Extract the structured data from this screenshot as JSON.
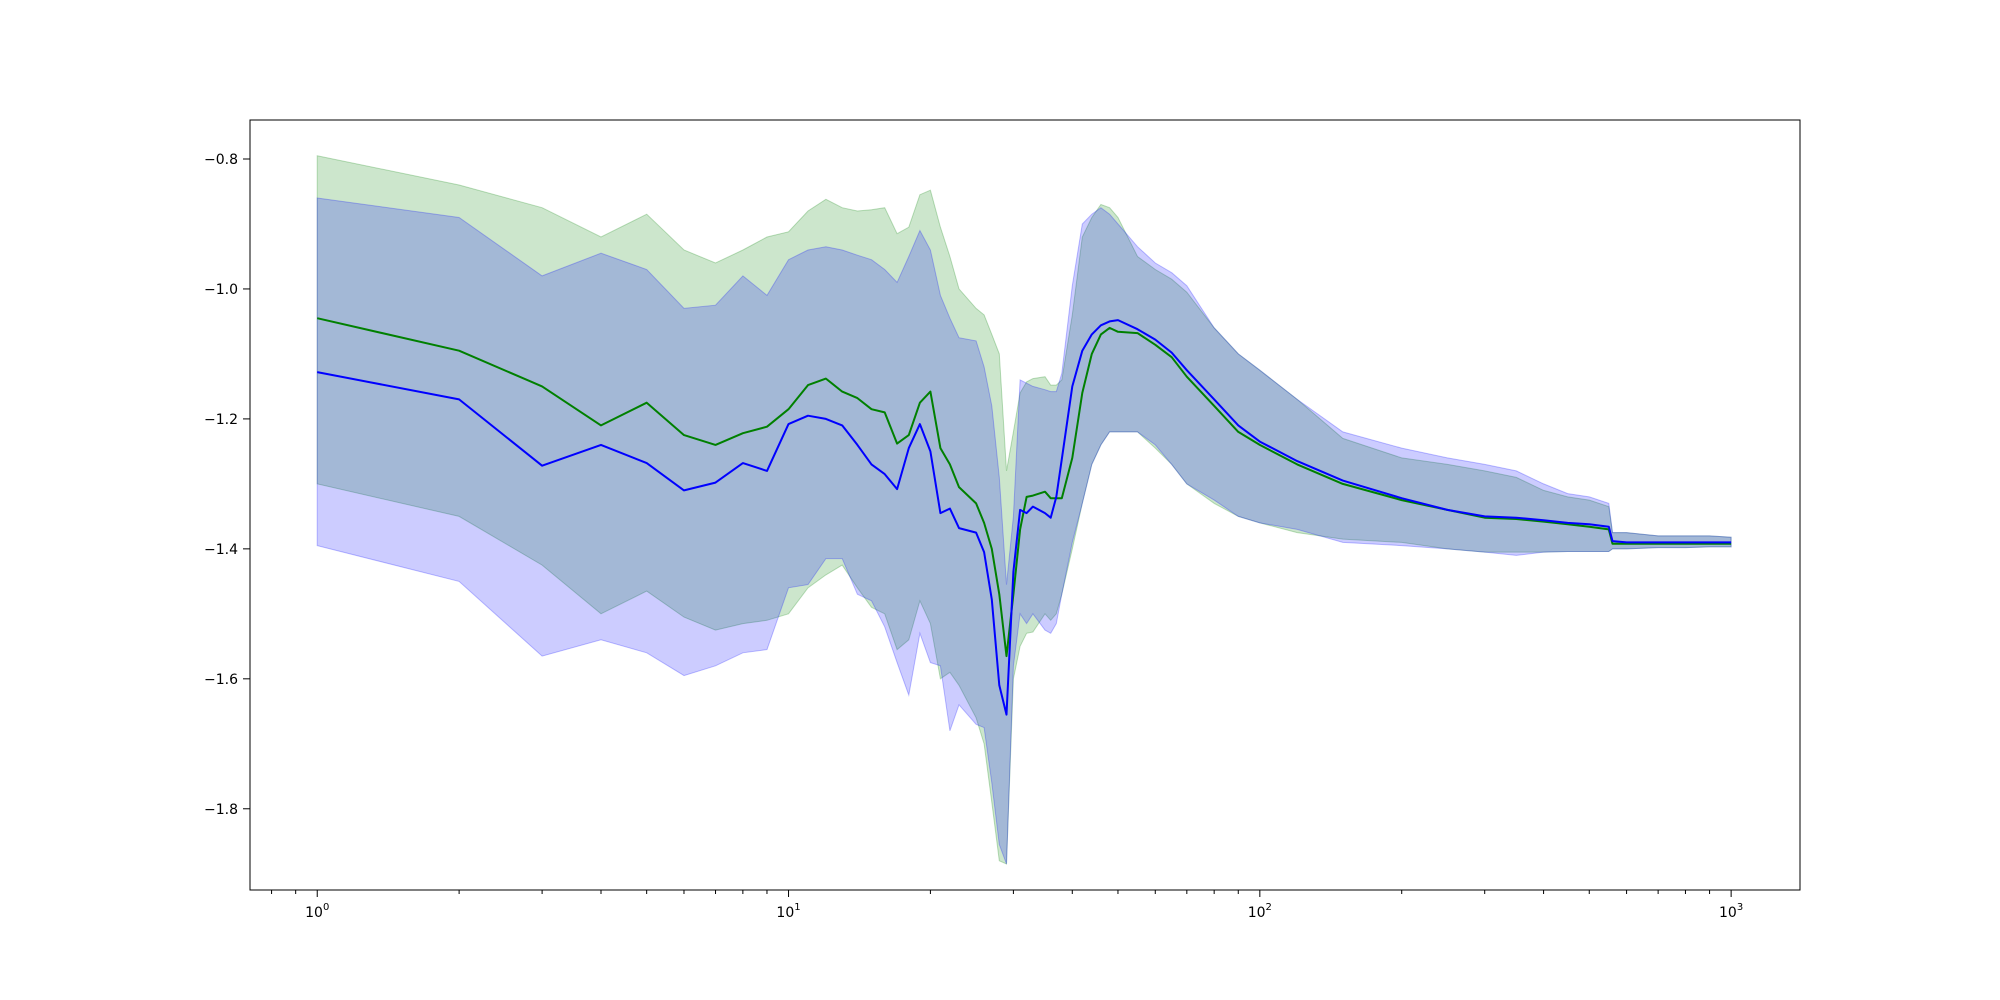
{
  "chart_data": {
    "type": "line",
    "title": "",
    "xlabel": "",
    "ylabel": "",
    "xscale": "log",
    "xlim": [
      0.72,
      1400
    ],
    "ylim": [
      -1.925,
      -0.74
    ],
    "grid": false,
    "legend": "none",
    "x_ticks": [
      {
        "base": "10",
        "exp": "0",
        "value": 1
      },
      {
        "base": "10",
        "exp": "1",
        "value": 10
      },
      {
        "base": "10",
        "exp": "2",
        "value": 100
      },
      {
        "base": "10",
        "exp": "3",
        "value": 1000
      }
    ],
    "y_ticks": [
      {
        "label": "−0.8",
        "value": -0.8
      },
      {
        "label": "−1.0",
        "value": -1.0
      },
      {
        "label": "−1.2",
        "value": -1.2
      },
      {
        "label": "−1.4",
        "value": -1.4
      },
      {
        "label": "−1.6",
        "value": -1.6
      },
      {
        "label": "−1.8",
        "value": -1.8
      }
    ],
    "series": [
      {
        "color": "#008000",
        "band_color": "#008000",
        "band_opacity": 0.2,
        "x": [
          1,
          2,
          3,
          4,
          5,
          6,
          7,
          8,
          9,
          10,
          11,
          12,
          13,
          14,
          15,
          16,
          17,
          18,
          19,
          20,
          21,
          22,
          23,
          25,
          26,
          27,
          28,
          29,
          30,
          31,
          32,
          33,
          35,
          36,
          37,
          38,
          40,
          42,
          44,
          46,
          48,
          50,
          55,
          60,
          65,
          70,
          80,
          90,
          100,
          120,
          150,
          200,
          250,
          300,
          350,
          400,
          450,
          500,
          550,
          560,
          600,
          700,
          800,
          900,
          1000
        ],
        "mean": [
          -1.045,
          -1.095,
          -1.15,
          -1.21,
          -1.175,
          -1.225,
          -1.24,
          -1.222,
          -1.212,
          -1.185,
          -1.148,
          -1.138,
          -1.158,
          -1.168,
          -1.185,
          -1.19,
          -1.238,
          -1.225,
          -1.175,
          -1.158,
          -1.245,
          -1.27,
          -1.305,
          -1.33,
          -1.36,
          -1.4,
          -1.47,
          -1.565,
          -1.47,
          -1.37,
          -1.32,
          -1.318,
          -1.312,
          -1.322,
          -1.322,
          -1.322,
          -1.26,
          -1.16,
          -1.1,
          -1.07,
          -1.06,
          -1.066,
          -1.068,
          -1.086,
          -1.105,
          -1.135,
          -1.18,
          -1.22,
          -1.24,
          -1.27,
          -1.3,
          -1.325,
          -1.34,
          -1.352,
          -1.354,
          -1.358,
          -1.362,
          -1.366,
          -1.37,
          -1.392,
          -1.392,
          -1.392,
          -1.392,
          -1.392,
          -1.392
        ],
        "lower": [
          -1.3,
          -1.35,
          -1.425,
          -1.5,
          -1.465,
          -1.505,
          -1.525,
          -1.515,
          -1.51,
          -1.5,
          -1.46,
          -1.44,
          -1.425,
          -1.46,
          -1.49,
          -1.5,
          -1.555,
          -1.54,
          -1.48,
          -1.515,
          -1.6,
          -1.59,
          -1.61,
          -1.66,
          -1.7,
          -1.79,
          -1.88,
          -1.885,
          -1.6,
          -1.55,
          -1.53,
          -1.528,
          -1.5,
          -1.51,
          -1.5,
          -1.47,
          -1.4,
          -1.33,
          -1.27,
          -1.24,
          -1.22,
          -1.22,
          -1.22,
          -1.245,
          -1.27,
          -1.3,
          -1.33,
          -1.35,
          -1.36,
          -1.375,
          -1.385,
          -1.39,
          -1.4,
          -1.405,
          -1.405,
          -1.405,
          -1.404,
          -1.404,
          -1.404,
          -1.4,
          -1.4,
          -1.398,
          -1.398,
          -1.397,
          -1.397
        ],
        "upper": [
          -0.795,
          -0.84,
          -0.875,
          -0.92,
          -0.885,
          -0.94,
          -0.96,
          -0.94,
          -0.92,
          -0.912,
          -0.88,
          -0.862,
          -0.875,
          -0.88,
          -0.878,
          -0.875,
          -0.915,
          -0.905,
          -0.855,
          -0.848,
          -0.905,
          -0.95,
          -1.0,
          -1.03,
          -1.04,
          -1.07,
          -1.1,
          -1.28,
          -1.22,
          -1.16,
          -1.143,
          -1.138,
          -1.135,
          -1.148,
          -1.148,
          -1.14,
          -1.04,
          -0.92,
          -0.89,
          -0.87,
          -0.875,
          -0.89,
          -0.95,
          -0.97,
          -0.985,
          -1.005,
          -1.06,
          -1.1,
          -1.125,
          -1.17,
          -1.23,
          -1.26,
          -1.27,
          -1.28,
          -1.29,
          -1.31,
          -1.32,
          -1.325,
          -1.335,
          -1.375,
          -1.375,
          -1.38,
          -1.38,
          -1.38,
          -1.382
        ]
      },
      {
        "color": "#0000ff",
        "band_color": "#0000ff",
        "band_opacity": 0.2,
        "x": [
          1,
          2,
          3,
          4,
          5,
          6,
          7,
          8,
          9,
          10,
          11,
          12,
          13,
          14,
          15,
          16,
          17,
          18,
          19,
          20,
          21,
          22,
          23,
          25,
          26,
          27,
          28,
          29,
          30,
          31,
          32,
          33,
          35,
          36,
          37,
          38,
          40,
          42,
          44,
          46,
          48,
          50,
          55,
          60,
          65,
          70,
          80,
          90,
          100,
          120,
          150,
          200,
          250,
          300,
          350,
          400,
          450,
          500,
          550,
          560,
          600,
          700,
          800,
          900,
          1000
        ],
        "mean": [
          -1.128,
          -1.17,
          -1.272,
          -1.24,
          -1.268,
          -1.31,
          -1.298,
          -1.268,
          -1.28,
          -1.208,
          -1.195,
          -1.2,
          -1.21,
          -1.24,
          -1.27,
          -1.285,
          -1.308,
          -1.245,
          -1.208,
          -1.25,
          -1.345,
          -1.338,
          -1.368,
          -1.375,
          -1.405,
          -1.478,
          -1.61,
          -1.655,
          -1.435,
          -1.34,
          -1.345,
          -1.335,
          -1.345,
          -1.352,
          -1.32,
          -1.262,
          -1.15,
          -1.095,
          -1.07,
          -1.056,
          -1.05,
          -1.048,
          -1.062,
          -1.078,
          -1.098,
          -1.125,
          -1.17,
          -1.21,
          -1.235,
          -1.265,
          -1.295,
          -1.322,
          -1.34,
          -1.35,
          -1.352,
          -1.356,
          -1.36,
          -1.362,
          -1.366,
          -1.388,
          -1.39,
          -1.39,
          -1.39,
          -1.39,
          -1.39
        ],
        "lower": [
          -1.395,
          -1.45,
          -1.565,
          -1.54,
          -1.56,
          -1.595,
          -1.58,
          -1.56,
          -1.555,
          -1.46,
          -1.455,
          -1.415,
          -1.415,
          -1.47,
          -1.48,
          -1.52,
          -1.575,
          -1.625,
          -1.53,
          -1.575,
          -1.58,
          -1.68,
          -1.64,
          -1.67,
          -1.675,
          -1.76,
          -1.855,
          -1.885,
          -1.58,
          -1.5,
          -1.515,
          -1.5,
          -1.525,
          -1.53,
          -1.515,
          -1.47,
          -1.39,
          -1.33,
          -1.27,
          -1.24,
          -1.22,
          -1.22,
          -1.22,
          -1.24,
          -1.27,
          -1.3,
          -1.325,
          -1.35,
          -1.36,
          -1.37,
          -1.39,
          -1.395,
          -1.4,
          -1.405,
          -1.41,
          -1.405,
          -1.404,
          -1.404,
          -1.404,
          -1.4,
          -1.4,
          -1.398,
          -1.398,
          -1.397,
          -1.397
        ],
        "upper": [
          -0.86,
          -0.89,
          -0.98,
          -0.945,
          -0.97,
          -1.03,
          -1.025,
          -0.98,
          -1.01,
          -0.955,
          -0.94,
          -0.935,
          -0.94,
          -0.948,
          -0.955,
          -0.97,
          -0.99,
          -0.95,
          -0.91,
          -0.94,
          -1.01,
          -1.045,
          -1.075,
          -1.08,
          -1.12,
          -1.18,
          -1.29,
          -1.455,
          -1.35,
          -1.14,
          -1.145,
          -1.15,
          -1.155,
          -1.158,
          -1.158,
          -1.13,
          -0.995,
          -0.9,
          -0.885,
          -0.875,
          -0.885,
          -0.9,
          -0.935,
          -0.96,
          -0.975,
          -0.995,
          -1.06,
          -1.1,
          -1.125,
          -1.17,
          -1.22,
          -1.245,
          -1.26,
          -1.27,
          -1.28,
          -1.3,
          -1.315,
          -1.32,
          -1.33,
          -1.375,
          -1.375,
          -1.38,
          -1.38,
          -1.38,
          -1.382
        ]
      }
    ]
  }
}
